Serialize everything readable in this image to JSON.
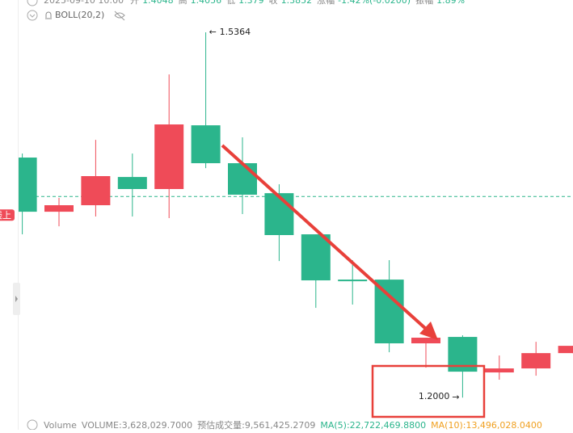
{
  "chart_data": {
    "type": "candlestick",
    "tooltip": {
      "date": "2025-09-10 10:00",
      "items": [
        {
          "label": "开",
          "value": 1.4048
        },
        {
          "label": "高",
          "value": 1.4056
        },
        {
          "label": "低",
          "value": 1.379
        },
        {
          "label": "收",
          "value": 1.3852
        },
        {
          "label": "涨幅",
          "value": "-1.42%(-0.0200)"
        },
        {
          "label": "振幅",
          "value": "1.89%"
        }
      ]
    },
    "indicator": "BOLL(20,2)",
    "price_tag": "线上",
    "open": [
      1.4211,
      1.3712,
      1.3772,
      1.4032,
      1.3921,
      1.4508,
      1.4159,
      1.3883,
      1.3504,
      1.3087,
      1.3087,
      1.25,
      1.2559,
      1.2232,
      1.2269,
      1.241
    ],
    "high": [
      1.4248,
      1.3839,
      1.4374,
      1.4248,
      1.4977,
      1.5364,
      1.4397,
      1.3965,
      1.3504,
      1.3266,
      1.3266,
      1.2552,
      1.2574,
      1.2388,
      1.2514,
      1.2477
    ],
    "low": [
      1.3504,
      1.3578,
      1.3668,
      1.3668,
      1.3653,
      1.4114,
      1.369,
      1.3258,
      1.2827,
      1.2857,
      1.2418,
      1.2276,
      1.2,
      1.2165,
      1.2202,
      1.241
    ],
    "close": [
      1.3712,
      1.3772,
      1.404,
      1.3921,
      1.4516,
      1.4159,
      1.3869,
      1.3497,
      1.308,
      1.3072,
      1.25,
      1.2552,
      1.2239,
      1.2269,
      1.241,
      1.2477
    ],
    "high_labels": [
      null,
      null,
      null,
      null,
      null,
      "1.5364",
      null,
      null,
      null,
      null,
      null,
      null,
      null,
      null,
      null,
      null
    ],
    "low_labels": [
      null,
      null,
      null,
      null,
      null,
      null,
      null,
      null,
      null,
      null,
      null,
      null,
      "1.2000",
      null,
      null,
      null
    ],
    "ylim": [
      1.1704,
      1.5662
    ],
    "up_color": "#ef4b58",
    "down_color": "#2bb58c",
    "footer": [
      "Volume",
      "VOLUME:3,628,029.7000",
      "预估成交量:9,561,425.2709",
      "MA(5):22,722,469.8800",
      "MA(10):13,496,028.0400"
    ]
  }
}
